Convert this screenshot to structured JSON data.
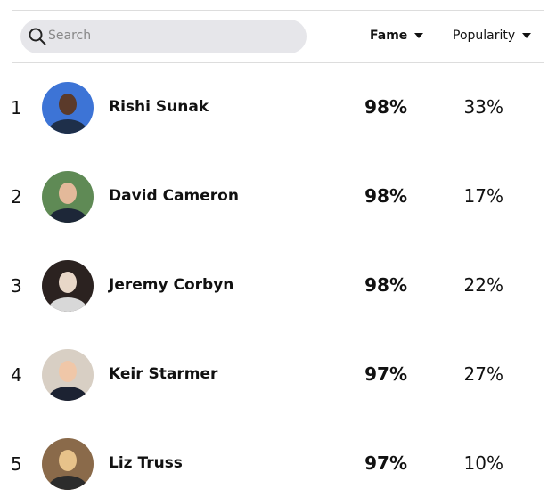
{
  "header": {
    "search_placeholder": "Search",
    "columns": [
      "Fame",
      "Popularity"
    ]
  },
  "table": {
    "rows": [
      [
        "1",
        "Rishi Sunak",
        "98%",
        "33%"
      ],
      [
        "2",
        "David Cameron",
        "98%",
        "17%"
      ],
      [
        "3",
        "Jeremy Corbyn",
        "98%",
        "22%"
      ],
      [
        "4",
        "Keir Starmer",
        "97%",
        "27%"
      ],
      [
        "5",
        "Liz Truss",
        "97%",
        "10%"
      ]
    ]
  }
}
